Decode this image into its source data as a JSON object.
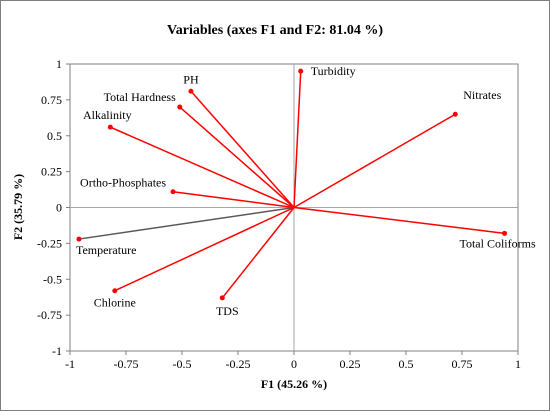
{
  "chart_data": {
    "type": "scatter",
    "title": "Variables (axes F1 and F2: 81.04 %)",
    "xlabel": "F1 (45.26 %)",
    "ylabel": "F2 (35.79 %)",
    "xlim": [
      -1,
      1
    ],
    "ylim": [
      -1,
      1
    ],
    "xticks": [
      "-1",
      "-0.75",
      "-0.5",
      "-0.25",
      "0",
      "0.25",
      "0.5",
      "0.75",
      "1"
    ],
    "xtick_values": [
      -1,
      -0.75,
      -0.5,
      -0.25,
      0,
      0.25,
      0.5,
      0.75,
      1
    ],
    "yticks": [
      "1",
      "0.75",
      "0.5",
      "0.25",
      "0",
      "-0.25",
      "-0.5",
      "-0.75",
      "-1"
    ],
    "ytick_values": [
      1,
      0.75,
      0.5,
      0.25,
      0,
      -0.25,
      -0.5,
      -0.75,
      -1
    ],
    "grid": false,
    "vector_color": "#ff0000",
    "supplementary_color": "#595959",
    "points": [
      {
        "label": "Turbidity",
        "x": 0.03,
        "y": 0.95,
        "color": "#ff0000"
      },
      {
        "label": "PH",
        "x": -0.46,
        "y": 0.81,
        "color": "#ff0000"
      },
      {
        "label": "Total Hardness",
        "x": -0.51,
        "y": 0.7,
        "color": "#ff0000"
      },
      {
        "label": "Alkalinity",
        "x": -0.82,
        "y": 0.56,
        "color": "#ff0000"
      },
      {
        "label": "Nitrates",
        "x": 0.72,
        "y": 0.65,
        "color": "#ff0000"
      },
      {
        "label": "Ortho-Phosphates",
        "x": -0.54,
        "y": 0.11,
        "color": "#ff0000"
      },
      {
        "label": "Temperature",
        "x": -0.96,
        "y": -0.22,
        "color": "#ff0000",
        "line_color": "#595959"
      },
      {
        "label": "Total Coliforms",
        "x": 0.94,
        "y": -0.18,
        "color": "#ff0000"
      },
      {
        "label": "Chlorine",
        "x": -0.8,
        "y": -0.58,
        "color": "#ff0000"
      },
      {
        "label": "TDS",
        "x": -0.32,
        "y": -0.63,
        "color": "#ff0000"
      }
    ]
  }
}
